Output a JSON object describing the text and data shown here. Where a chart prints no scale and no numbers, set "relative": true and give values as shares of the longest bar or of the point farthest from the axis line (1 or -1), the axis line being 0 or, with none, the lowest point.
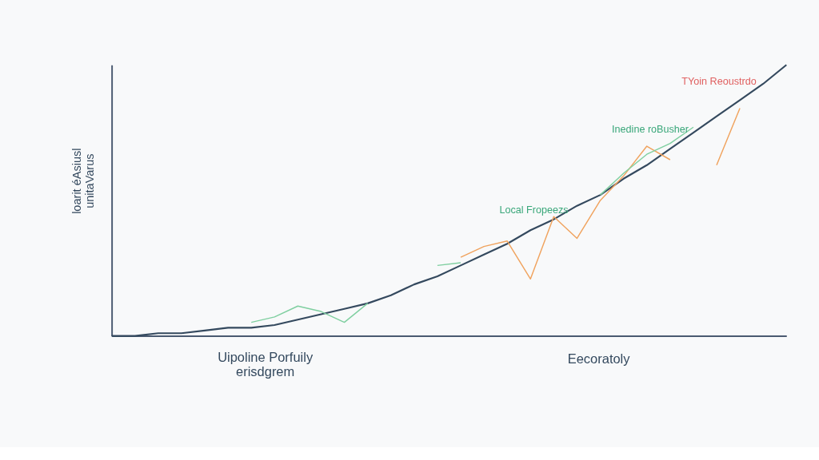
{
  "chart_data": {
    "type": "line",
    "relative": true,
    "ylabel": "loarit éAsiusl\nunitaVarus",
    "categories": [
      null,
      null,
      null,
      null,
      null,
      null,
      null,
      null,
      null,
      null,
      null,
      null,
      null,
      null,
      null,
      null,
      null,
      null,
      null,
      null,
      null,
      null,
      null,
      null,
      null,
      null,
      null,
      null,
      null,
      null
    ],
    "series": [
      {
        "color": "#34495e",
        "values": [
          0,
          0,
          0.01,
          0.01,
          0.02,
          0.03,
          0.03,
          0.04,
          0.06,
          0.08,
          0.1,
          0.12,
          0.15,
          0.19,
          0.22,
          0.26,
          0.3,
          0.34,
          0.39,
          0.43,
          0.48,
          0.52,
          0.58,
          0.63,
          0.69,
          0.75,
          0.81,
          0.87,
          0.93,
          1
        ]
      },
      {
        "color": "#f0a35e",
        "values": [
          null,
          null,
          null,
          null,
          null,
          null,
          null,
          null,
          null,
          null,
          null,
          null,
          null,
          null,
          null,
          0.29,
          0.33,
          0.35,
          0.21,
          0.44,
          0.36,
          0.5,
          0.59,
          0.7,
          0.65,
          null,
          0.63,
          0.84,
          null,
          null
        ]
      },
      {
        "color": "#7fcfa0",
        "values": [
          null,
          null,
          null,
          null,
          null,
          null,
          0.05,
          0.07,
          0.11,
          0.09,
          0.05,
          0.12,
          null,
          null,
          0.26,
          0.27,
          null,
          null,
          null,
          null,
          null,
          0.52,
          0.6,
          0.67,
          0.71,
          0.77,
          null,
          null,
          null,
          null
        ]
      }
    ],
    "annotations": [
      "Local Fropeezs",
      "Inedine roBusher",
      "TYoin Reoustrdo",
      "Uipoline Porfuily\nerisdgrem",
      "Eecoratoly"
    ],
    "line_style": "solid",
    "marker": "none"
  }
}
